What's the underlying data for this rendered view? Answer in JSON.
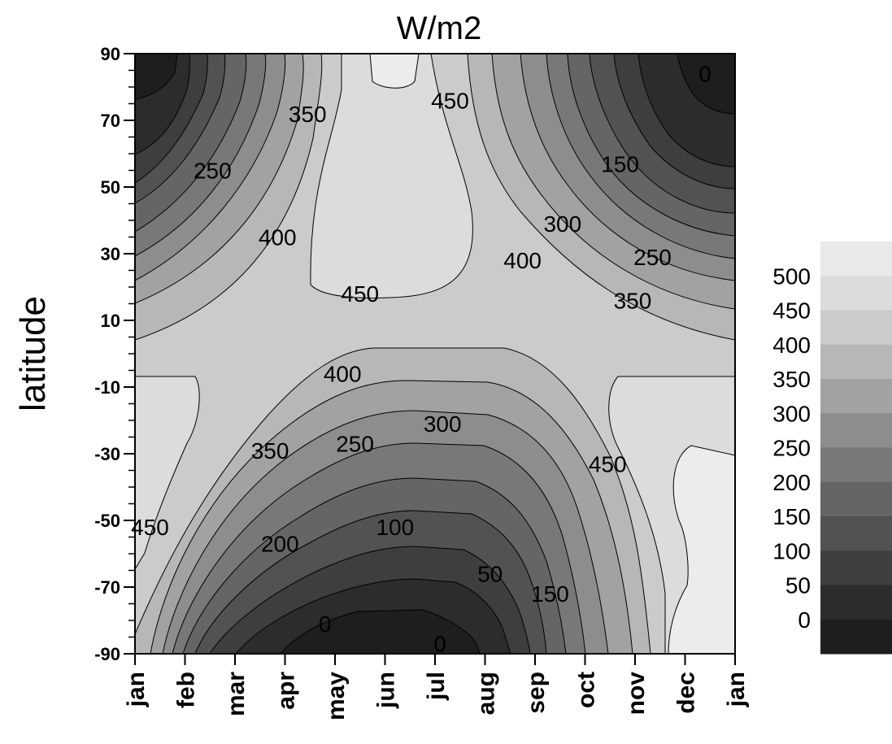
{
  "chart_data": {
    "type": "contour",
    "title": "W/m2",
    "ylabel": "latitude",
    "xlabel": "",
    "x_ticks": [
      "jan",
      "feb",
      "mar",
      "apr",
      "may",
      "jun",
      "jul",
      "aug",
      "sep",
      "oct",
      "nov",
      "dec",
      "jan"
    ],
    "y_ticks": [
      90,
      70,
      50,
      30,
      10,
      -10,
      -30,
      -50,
      -70,
      -90
    ],
    "ylim": [
      -90,
      90
    ],
    "colorbar": {
      "levels": [
        0,
        50,
        100,
        150,
        200,
        250,
        300,
        350,
        400,
        450,
        500
      ],
      "labels": [
        "500",
        "450",
        "400",
        "350",
        "300",
        "250",
        "200",
        "150",
        "100",
        "50",
        "0"
      ],
      "colors": [
        "#e9e9e9",
        "#dcdcdc",
        "#cbcbcb",
        "#b7b7b7",
        "#a2a2a2",
        "#8d8d8d",
        "#787878",
        "#656565",
        "#525252",
        "#3e3e3e",
        "#2c2c2c",
        "#1e1e1e"
      ]
    },
    "contour_labels": [
      {
        "text": "350",
        "month": 3.45,
        "lat": 72
      },
      {
        "text": "250",
        "month": 1.55,
        "lat": 55
      },
      {
        "text": "400",
        "month": 2.85,
        "lat": 35
      },
      {
        "text": "450",
        "month": 6.3,
        "lat": 76
      },
      {
        "text": "450",
        "month": 4.5,
        "lat": 18
      },
      {
        "text": "150",
        "month": 9.7,
        "lat": 57
      },
      {
        "text": "300",
        "month": 8.55,
        "lat": 39
      },
      {
        "text": "400",
        "month": 7.75,
        "lat": 28
      },
      {
        "text": "250",
        "month": 10.35,
        "lat": 29
      },
      {
        "text": "350",
        "month": 9.95,
        "lat": 16
      },
      {
        "text": "0",
        "month": 11.4,
        "lat": 84
      },
      {
        "text": "400",
        "month": 4.15,
        "lat": -6
      },
      {
        "text": "300",
        "month": 6.15,
        "lat": -21
      },
      {
        "text": "350",
        "month": 2.7,
        "lat": -29
      },
      {
        "text": "250",
        "month": 4.4,
        "lat": -27
      },
      {
        "text": "450",
        "month": 0.3,
        "lat": -52
      },
      {
        "text": "200",
        "month": 2.9,
        "lat": -57
      },
      {
        "text": "100",
        "month": 5.2,
        "lat": -52
      },
      {
        "text": "50",
        "month": 7.1,
        "lat": -66
      },
      {
        "text": "150",
        "month": 8.3,
        "lat": -72
      },
      {
        "text": "450",
        "month": 9.45,
        "lat": -33
      },
      {
        "text": "0",
        "month": 3.8,
        "lat": -81
      },
      {
        "text": "0",
        "month": 6.1,
        "lat": -87
      }
    ]
  }
}
